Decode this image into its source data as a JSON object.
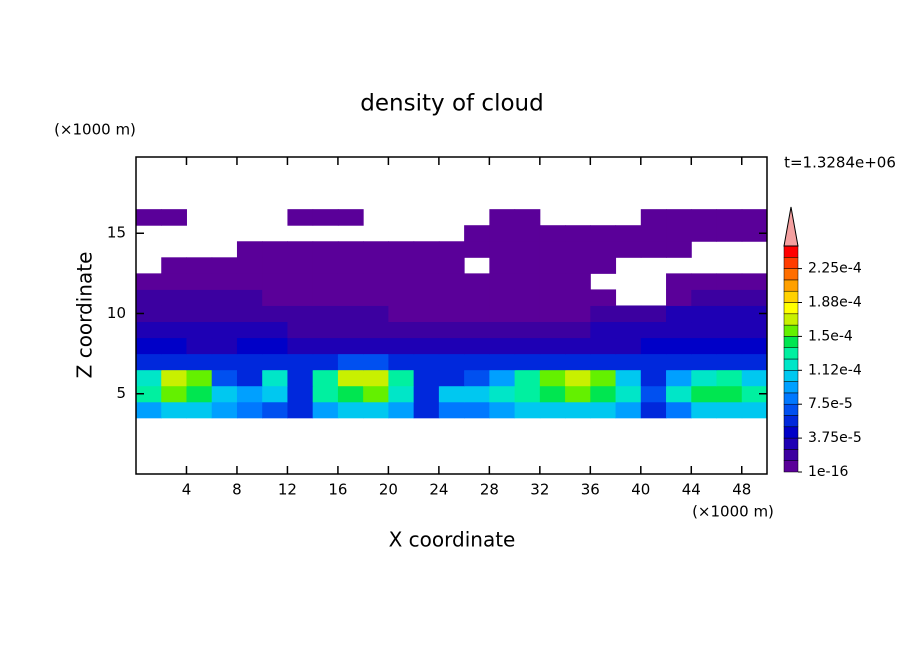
{
  "chart_data": {
    "type": "contour",
    "title": "density of cloud",
    "y_unit": "(×1000 m)",
    "x_unit": "(×1000 m)",
    "ylabel": "Z coordinate",
    "xlabel": "X coordinate",
    "time_label": "t=1.3284e+06",
    "xlim": [
      0,
      50
    ],
    "ylim": [
      0,
      19.75
    ],
    "xticks": [
      4,
      8,
      12,
      16,
      20,
      24,
      28,
      32,
      36,
      40,
      44,
      48
    ],
    "yticks": [
      5,
      10,
      15
    ],
    "x": [
      1,
      3,
      5,
      7,
      9,
      11,
      13,
      15,
      17,
      19,
      21,
      23,
      25,
      27,
      29,
      31,
      33,
      35,
      37,
      39,
      41,
      43,
      45,
      47,
      49
    ],
    "y": [
      4,
      5,
      6,
      7,
      8,
      9,
      10,
      11,
      12,
      13,
      14,
      15,
      16
    ],
    "z": [
      [
        9e-05,
        0.0001,
        0.0001,
        9e-05,
        8e-05,
        7e-05,
        5e-05,
        9e-05,
        0.0001,
        0.0001,
        9e-05,
        5e-05,
        8e-05,
        8e-05,
        9e-05,
        0.0001,
        0.00011,
        0.00011,
        0.0001,
        9e-05,
        6e-05,
        8e-05,
        0.0001,
        0.0001,
        0.0001
      ],
      [
        0.00013,
        0.00015,
        0.00014,
        0.00011,
        9e-05,
        0.0001,
        6e-05,
        0.00013,
        0.00014,
        0.00015,
        0.00012,
        6e-05,
        0.0001,
        0.00011,
        0.00012,
        0.00013,
        0.00014,
        0.00015,
        0.00014,
        0.00012,
        7e-05,
        0.00012,
        0.00014,
        0.00014,
        0.00013
      ],
      [
        0.00012,
        0.00017,
        0.00015,
        7e-05,
        6e-05,
        0.00012,
        5e-05,
        0.00013,
        0.00017,
        0.00017,
        0.00013,
        5e-05,
        6e-05,
        7e-05,
        9e-05,
        0.00013,
        0.00016,
        0.00017,
        0.00015,
        0.00011,
        6e-05,
        9e-05,
        0.00012,
        0.00013,
        0.00011
      ],
      [
        5e-05,
        6e-05,
        6e-05,
        5e-05,
        5e-05,
        6e-05,
        5e-05,
        6e-05,
        7e-05,
        7e-05,
        6e-05,
        5e-05,
        5e-05,
        5e-05,
        5e-05,
        6e-05,
        6e-05,
        6e-05,
        6e-05,
        5e-05,
        5e-05,
        5e-05,
        6e-05,
        6e-05,
        5e-05
      ],
      [
        4e-05,
        4e-05,
        3.5e-05,
        3.5e-05,
        4e-05,
        4e-05,
        3.5e-05,
        3.5e-05,
        3e-05,
        3.5e-05,
        3.5e-05,
        3e-05,
        3e-05,
        3.5e-05,
        3e-05,
        3e-05,
        3e-05,
        3e-05,
        3.5e-05,
        3.5e-05,
        4e-05,
        4e-05,
        4.5e-05,
        4.5e-05,
        4.5e-05
      ],
      [
        3e-05,
        2.5e-05,
        2.5e-05,
        2.5e-05,
        2.5e-05,
        2.5e-05,
        2e-05,
        2e-05,
        2e-05,
        2e-05,
        2e-05,
        2e-05,
        1.5e-05,
        1.5e-05,
        1.5e-05,
        1.5e-05,
        1.5e-05,
        2e-05,
        2.5e-05,
        3e-05,
        3e-05,
        3.5e-05,
        3.5e-05,
        3.5e-05,
        3.5e-05
      ],
      [
        2e-05,
        2e-05,
        2e-05,
        1.5e-05,
        1.5e-05,
        1.5e-05,
        1.5e-05,
        1.5e-05,
        1.5e-05,
        1.5e-05,
        1e-05,
        1e-05,
        1e-05,
        8e-06,
        8e-06,
        8e-06,
        1e-05,
        1e-05,
        1.5e-05,
        2e-05,
        2e-05,
        2.5e-05,
        2.5e-05,
        2.5e-05,
        2.5e-05
      ],
      [
        1.5e-05,
        1.5e-05,
        1.5e-05,
        1.5e-05,
        1.5e-05,
        1e-05,
        8e-06,
        8e-06,
        8e-06,
        6e-06,
        5e-06,
        5e-06,
        5e-06,
        5e-06,
        5e-06,
        5e-06,
        5e-06,
        5e-06,
        4e-06,
        null,
        null,
        8e-06,
        1.5e-05,
        1.5e-05,
        1.5e-05
      ],
      [
        1e-05,
        1e-05,
        1e-05,
        8e-06,
        6e-06,
        5e-06,
        4e-06,
        4e-06,
        4e-06,
        4e-06,
        4e-06,
        4e-06,
        3e-06,
        3e-06,
        3e-06,
        3e-06,
        3e-06,
        3e-06,
        null,
        null,
        null,
        4e-06,
        6e-06,
        8e-06,
        8e-06
      ],
      [
        null,
        3e-06,
        3e-06,
        3e-06,
        3e-06,
        3e-06,
        3e-06,
        3e-06,
        3e-06,
        3e-06,
        3e-06,
        3e-06,
        3e-06,
        null,
        3e-06,
        3e-06,
        3e-06,
        3e-06,
        3e-06,
        null,
        null,
        null,
        null,
        null,
        null
      ],
      [
        null,
        null,
        null,
        null,
        2e-06,
        2e-06,
        2e-06,
        2e-06,
        2e-06,
        2e-06,
        2e-06,
        2e-06,
        2e-06,
        2e-06,
        2e-06,
        2e-06,
        2e-06,
        2e-06,
        2e-06,
        2e-06,
        2e-06,
        2e-06,
        null,
        null,
        null
      ],
      [
        null,
        null,
        null,
        null,
        null,
        null,
        null,
        null,
        null,
        null,
        null,
        null,
        null,
        2e-06,
        2e-06,
        2e-06,
        2e-06,
        2e-06,
        2e-06,
        2e-06,
        2e-06,
        2e-06,
        2e-06,
        2e-06,
        2e-06
      ],
      [
        2e-06,
        2e-06,
        null,
        null,
        null,
        null,
        2e-06,
        2e-06,
        2e-06,
        null,
        null,
        null,
        null,
        null,
        2e-06,
        2e-06,
        null,
        null,
        null,
        null,
        2e-06,
        2e-06,
        2e-06,
        2e-06,
        2e-06
      ]
    ],
    "colorbar": {
      "levels": [
        1e-16,
        1.25e-05,
        2.5e-05,
        3.75e-05,
        5e-05,
        6.25e-05,
        7.5e-05,
        8.75e-05,
        0.0001,
        0.0001125,
        0.000125,
        0.0001375,
        0.00015,
        0.0001625,
        0.000175,
        0.0001875,
        0.0002,
        0.0002125,
        0.000225,
        0.0002375,
        0.00025
      ],
      "colors": [
        "#5a0099",
        "#3c00a0",
        "#1e00b4",
        "#0000c8",
        "#0028dc",
        "#0050f0",
        "#0078ff",
        "#00a0ff",
        "#00c8f0",
        "#00e6c8",
        "#00f0a0",
        "#00e650",
        "#64f000",
        "#c8f000",
        "#ffff00",
        "#ffd200",
        "#ffa000",
        "#ff6e00",
        "#ff3c00",
        "#ff0000"
      ],
      "extend_color": "#f4a0a0",
      "ticks": [
        1e-16,
        {
          "value": 3.75e-05,
          "label": "3.75e-5"
        },
        {
          "value": 7.5e-05,
          "label": "7.5e-5"
        },
        {
          "value": 0.0001125,
          "label": "1.12e-4"
        },
        {
          "value": 0.00015,
          "label": "1.5e-4"
        },
        {
          "value": 0.0001875,
          "label": "1.88e-4"
        },
        {
          "value": 0.000225,
          "label": "2.25e-4"
        }
      ]
    }
  }
}
